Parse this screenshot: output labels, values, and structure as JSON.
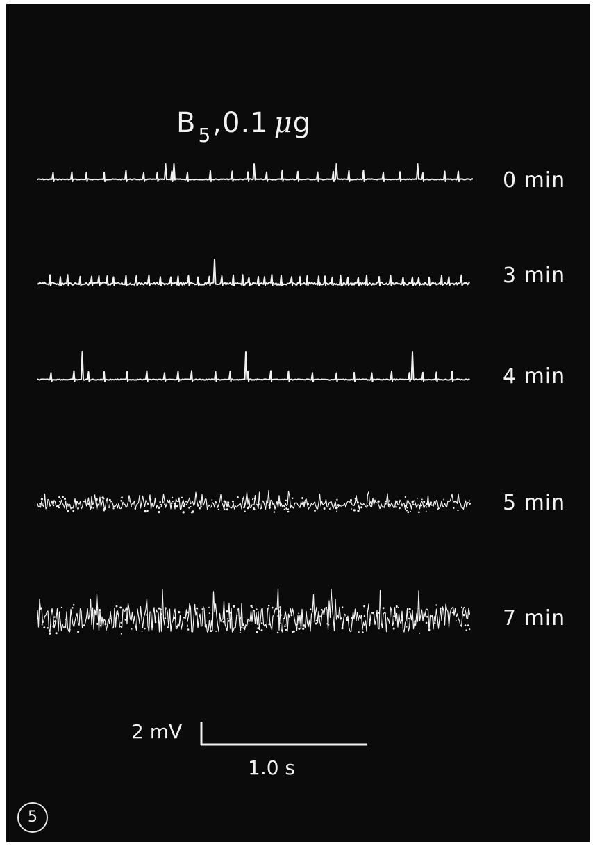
{
  "figure": {
    "title_main": "B",
    "title_sub": "5",
    "title_dose": ",0.1",
    "title_mu": "μ",
    "title_unit": "g",
    "figure_number": "5"
  },
  "traces": [
    {
      "label": "0 min",
      "pattern": "regular spikes, quiet baseline",
      "noise": 0.02
    },
    {
      "label": "3 min",
      "pattern": "frequent small spikes",
      "noise": 0.15
    },
    {
      "label": "4 min",
      "pattern": "regular spikes",
      "noise": 0.05
    },
    {
      "label": "5 min",
      "pattern": "dense irregular activity",
      "noise": 0.55
    },
    {
      "label": "7 min",
      "pattern": "noisy desynchronized activity",
      "noise": 1.0
    }
  ],
  "scale_bar": {
    "amplitude_label": "2 mV",
    "time_label": "1.0 s",
    "amplitude_mV": 2,
    "time_s": 1.0
  },
  "colors": {
    "background": "#0b0b0b",
    "trace": "#f2f2f2"
  }
}
